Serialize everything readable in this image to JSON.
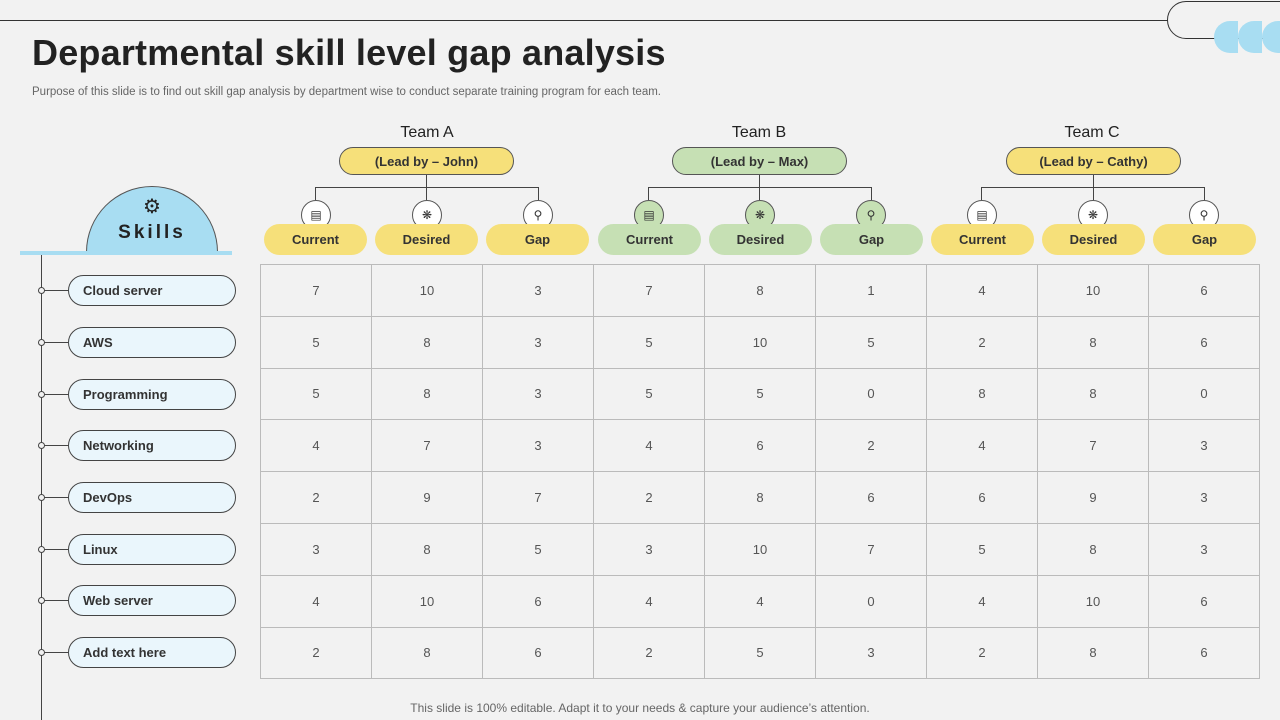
{
  "title": "Departmental skill level gap analysis",
  "subtitle": "Purpose of this slide is to find out skill gap analysis by department wise to conduct separate training program for each team.",
  "footer": "This slide is 100% editable. Adapt it to your needs & capture your audience’s attention.",
  "skills_header": "Skills",
  "skills": [
    "Cloud server",
    "AWS",
    "Programming",
    "Networking",
    "DevOps",
    "Linux",
    "Web server",
    "Add text here"
  ],
  "teams": [
    {
      "name": "Team A",
      "lead": "(Lead by – John)",
      "color": "#f6e07a"
    },
    {
      "name": "Team B",
      "lead": "(Lead by – Max)",
      "color": "#c6e0b4"
    },
    {
      "name": "Team C",
      "lead": "(Lead by – Cathy)",
      "color": "#f6e07a"
    }
  ],
  "columns": [
    "Current",
    "Desired",
    "Gap"
  ],
  "column_icons": [
    "monitor-icon",
    "lightbulb-icon",
    "search-icon"
  ],
  "rows": [
    [
      "7",
      "10",
      "3",
      "7",
      "8",
      "1",
      "4",
      "10",
      "6"
    ],
    [
      "5",
      "8",
      "3",
      "5",
      "10",
      "5",
      "2",
      "8",
      "6"
    ],
    [
      "5",
      "8",
      "3",
      "5",
      "5",
      "0",
      "8",
      "8",
      "0"
    ],
    [
      "4",
      "7",
      "3",
      "4",
      "6",
      "2",
      "4",
      "7",
      "3"
    ],
    [
      "2",
      "9",
      "7",
      "2",
      "8",
      "6",
      "6",
      "9",
      "3"
    ],
    [
      "3",
      "8",
      "5",
      "3",
      "10",
      "7",
      "5",
      "8",
      "3"
    ],
    [
      "4",
      "10",
      "6",
      "4",
      "4",
      "0",
      "4",
      "10",
      "6"
    ],
    [
      "2",
      "8",
      "6",
      "2",
      "5",
      "3",
      "2",
      "8",
      "6"
    ]
  ]
}
